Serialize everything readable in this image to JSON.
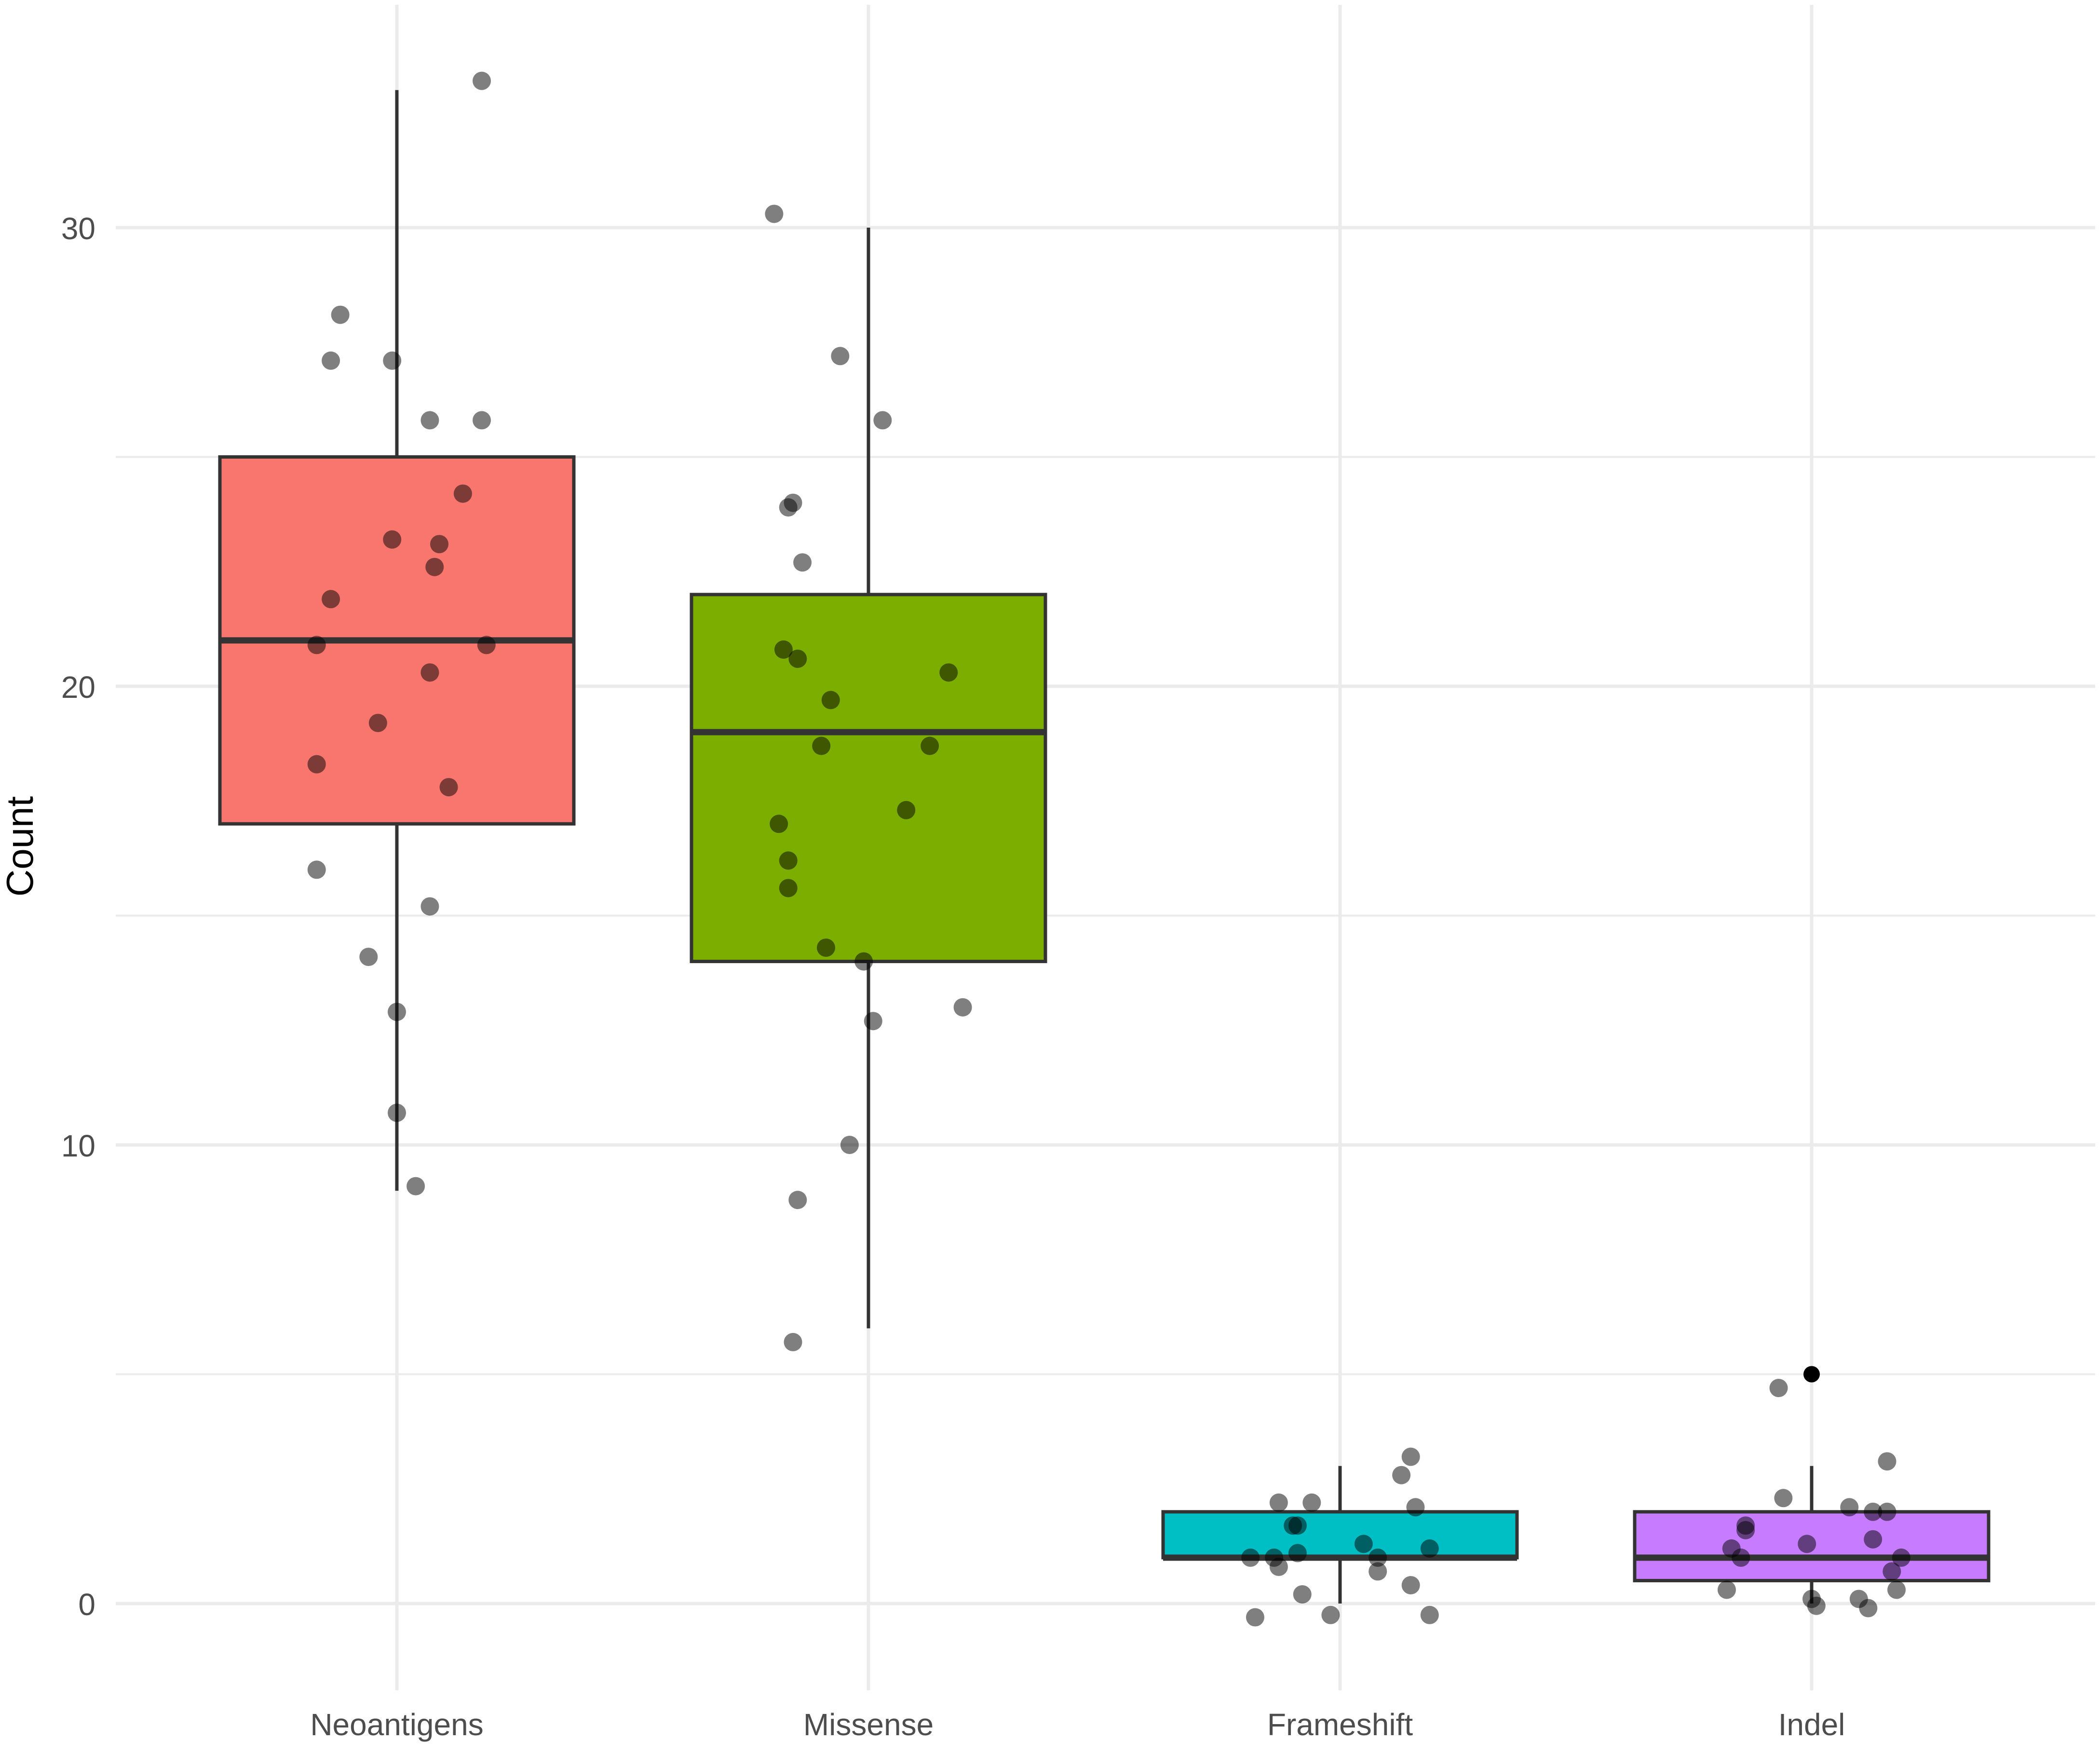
{
  "chart_data": {
    "type": "box",
    "title": "",
    "xlabel": "",
    "ylabel": "Count",
    "ylim": [
      -2.5,
      33.6
    ],
    "yticks": [
      0,
      10,
      20,
      30
    ],
    "grid": true,
    "legend": "none",
    "categories": [
      "Neoantigens",
      "Missense",
      "Frameshift",
      "Indel"
    ],
    "colors": [
      "#F8766D",
      "#7CAE00",
      "#00BFC4",
      "#C77CFF"
    ],
    "boxes": [
      {
        "category": "Neoantigens",
        "whisker_low": 9,
        "q1": 17,
        "median": 21,
        "q3": 25,
        "whisker_high": 33
      },
      {
        "category": "Missense",
        "whisker_low": 6,
        "q1": 14,
        "median": 19,
        "q3": 22,
        "whisker_high": 30
      },
      {
        "category": "Frameshift",
        "whisker_low": 0,
        "q1": 1,
        "median": 1,
        "q3": 2,
        "whisker_high": 3
      },
      {
        "category": "Indel",
        "whisker_low": 0,
        "q1": 0.5,
        "median": 1,
        "q3": 2,
        "whisker_high": 3
      }
    ],
    "outliers": [
      {
        "category": "Indel",
        "y": 5
      }
    ],
    "points": [
      {
        "category": "Neoantigens",
        "jitter": 0.18,
        "y": 33.2
      },
      {
        "category": "Neoantigens",
        "jitter": -0.12,
        "y": 28.1
      },
      {
        "category": "Neoantigens",
        "jitter": -0.14,
        "y": 27.1
      },
      {
        "category": "Neoantigens",
        "jitter": -0.01,
        "y": 27.1
      },
      {
        "category": "Neoantigens",
        "jitter": 0.07,
        "y": 25.8
      },
      {
        "category": "Neoantigens",
        "jitter": 0.18,
        "y": 25.8
      },
      {
        "category": "Neoantigens",
        "jitter": 0.14,
        "y": 24.2
      },
      {
        "category": "Neoantigens",
        "jitter": -0.01,
        "y": 23.2
      },
      {
        "category": "Neoantigens",
        "jitter": 0.09,
        "y": 23.1
      },
      {
        "category": "Neoantigens",
        "jitter": 0.08,
        "y": 22.6
      },
      {
        "category": "Neoantigens",
        "jitter": -0.14,
        "y": 21.9
      },
      {
        "category": "Neoantigens",
        "jitter": -0.17,
        "y": 20.9
      },
      {
        "category": "Neoantigens",
        "jitter": 0.19,
        "y": 20.9
      },
      {
        "category": "Neoantigens",
        "jitter": 0.07,
        "y": 20.3
      },
      {
        "category": "Neoantigens",
        "jitter": -0.04,
        "y": 19.2
      },
      {
        "category": "Neoantigens",
        "jitter": -0.17,
        "y": 18.3
      },
      {
        "category": "Neoantigens",
        "jitter": 0.11,
        "y": 17.8
      },
      {
        "category": "Neoantigens",
        "jitter": -0.17,
        "y": 16.0
      },
      {
        "category": "Neoantigens",
        "jitter": 0.07,
        "y": 15.2
      },
      {
        "category": "Neoantigens",
        "jitter": -0.06,
        "y": 14.1
      },
      {
        "category": "Neoantigens",
        "jitter": 0.0,
        "y": 12.9
      },
      {
        "category": "Neoantigens",
        "jitter": 0.0,
        "y": 10.7
      },
      {
        "category": "Neoantigens",
        "jitter": 0.04,
        "y": 9.1
      },
      {
        "category": "Missense",
        "jitter": -0.2,
        "y": 30.3
      },
      {
        "category": "Missense",
        "jitter": -0.06,
        "y": 27.2
      },
      {
        "category": "Missense",
        "jitter": 0.03,
        "y": 25.8
      },
      {
        "category": "Missense",
        "jitter": -0.16,
        "y": 24.0
      },
      {
        "category": "Missense",
        "jitter": -0.17,
        "y": 23.9
      },
      {
        "category": "Missense",
        "jitter": -0.14,
        "y": 22.7
      },
      {
        "category": "Missense",
        "jitter": -0.18,
        "y": 20.8
      },
      {
        "category": "Missense",
        "jitter": -0.15,
        "y": 20.6
      },
      {
        "category": "Missense",
        "jitter": 0.17,
        "y": 20.3
      },
      {
        "category": "Missense",
        "jitter": -0.08,
        "y": 19.7
      },
      {
        "category": "Missense",
        "jitter": -0.1,
        "y": 18.7
      },
      {
        "category": "Missense",
        "jitter": 0.13,
        "y": 18.7
      },
      {
        "category": "Missense",
        "jitter": 0.08,
        "y": 17.3
      },
      {
        "category": "Missense",
        "jitter": -0.19,
        "y": 17.0
      },
      {
        "category": "Missense",
        "jitter": -0.17,
        "y": 16.2
      },
      {
        "category": "Missense",
        "jitter": -0.17,
        "y": 15.6
      },
      {
        "category": "Missense",
        "jitter": -0.09,
        "y": 14.3
      },
      {
        "category": "Missense",
        "jitter": -0.01,
        "y": 14.0
      },
      {
        "category": "Missense",
        "jitter": 0.2,
        "y": 13.0
      },
      {
        "category": "Missense",
        "jitter": 0.01,
        "y": 12.7
      },
      {
        "category": "Missense",
        "jitter": -0.04,
        "y": 10.0
      },
      {
        "category": "Missense",
        "jitter": -0.15,
        "y": 8.8
      },
      {
        "category": "Missense",
        "jitter": -0.16,
        "y": 5.7
      },
      {
        "category": "Frameshift",
        "jitter": 0.15,
        "y": 3.2
      },
      {
        "category": "Frameshift",
        "jitter": 0.13,
        "y": 2.8
      },
      {
        "category": "Frameshift",
        "jitter": -0.13,
        "y": 2.2
      },
      {
        "category": "Frameshift",
        "jitter": -0.06,
        "y": 2.2
      },
      {
        "category": "Frameshift",
        "jitter": 0.16,
        "y": 2.1
      },
      {
        "category": "Frameshift",
        "jitter": -0.1,
        "y": 1.7
      },
      {
        "category": "Frameshift",
        "jitter": -0.09,
        "y": 1.7
      },
      {
        "category": "Frameshift",
        "jitter": 0.05,
        "y": 1.3
      },
      {
        "category": "Frameshift",
        "jitter": 0.19,
        "y": 1.2
      },
      {
        "category": "Frameshift",
        "jitter": -0.09,
        "y": 1.1
      },
      {
        "category": "Frameshift",
        "jitter": -0.19,
        "y": 1.0
      },
      {
        "category": "Frameshift",
        "jitter": -0.14,
        "y": 1.0
      },
      {
        "category": "Frameshift",
        "jitter": 0.08,
        "y": 1.0
      },
      {
        "category": "Frameshift",
        "jitter": -0.13,
        "y": 0.8
      },
      {
        "category": "Frameshift",
        "jitter": 0.08,
        "y": 0.7
      },
      {
        "category": "Frameshift",
        "jitter": 0.15,
        "y": 0.4
      },
      {
        "category": "Frameshift",
        "jitter": -0.08,
        "y": 0.2
      },
      {
        "category": "Frameshift",
        "jitter": -0.18,
        "y": -0.3
      },
      {
        "category": "Frameshift",
        "jitter": -0.02,
        "y": -0.25
      },
      {
        "category": "Frameshift",
        "jitter": 0.19,
        "y": -0.25
      },
      {
        "category": "Indel",
        "jitter": -0.07,
        "y": 4.7
      },
      {
        "category": "Indel",
        "jitter": 0.16,
        "y": 3.1
      },
      {
        "category": "Indel",
        "jitter": -0.06,
        "y": 2.3
      },
      {
        "category": "Indel",
        "jitter": 0.08,
        "y": 2.1
      },
      {
        "category": "Indel",
        "jitter": 0.13,
        "y": 2.0
      },
      {
        "category": "Indel",
        "jitter": 0.16,
        "y": 2.0
      },
      {
        "category": "Indel",
        "jitter": -0.14,
        "y": 1.7
      },
      {
        "category": "Indel",
        "jitter": -0.14,
        "y": 1.6
      },
      {
        "category": "Indel",
        "jitter": 0.13,
        "y": 1.4
      },
      {
        "category": "Indel",
        "jitter": -0.01,
        "y": 1.3
      },
      {
        "category": "Indel",
        "jitter": -0.17,
        "y": 1.2
      },
      {
        "category": "Indel",
        "jitter": -0.15,
        "y": 1.0
      },
      {
        "category": "Indel",
        "jitter": 0.19,
        "y": 1.0
      },
      {
        "category": "Indel",
        "jitter": 0.17,
        "y": 0.7
      },
      {
        "category": "Indel",
        "jitter": -0.18,
        "y": 0.3
      },
      {
        "category": "Indel",
        "jitter": 0.18,
        "y": 0.3
      },
      {
        "category": "Indel",
        "jitter": 0.0,
        "y": 0.1
      },
      {
        "category": "Indel",
        "jitter": 0.1,
        "y": 0.1
      },
      {
        "category": "Indel",
        "jitter": 0.01,
        "y": -0.05
      },
      {
        "category": "Indel",
        "jitter": 0.12,
        "y": -0.1
      }
    ]
  }
}
